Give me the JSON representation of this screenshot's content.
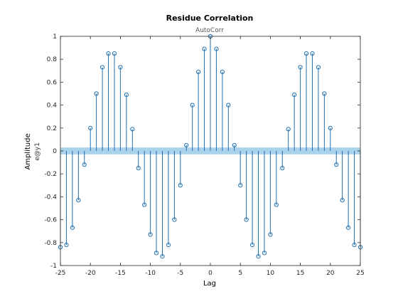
{
  "chart_data": {
    "type": "stem",
    "title": "Residue Correlation",
    "subtitle": "AutoCorr",
    "xlabel": "Lag",
    "ylabel": "Amplitude",
    "channel_label": "e@y1",
    "xlim": [
      -25,
      25
    ],
    "ylim": [
      -1,
      1
    ],
    "xticks": [
      -25,
      -20,
      -15,
      -10,
      -5,
      0,
      5,
      10,
      15,
      20,
      25
    ],
    "yticks": [
      -1,
      -0.8,
      -0.6,
      -0.4,
      -0.2,
      0,
      0.2,
      0.4,
      0.6,
      0.8,
      1
    ],
    "ytick_labels": [
      "-1",
      "-0.8",
      "-0.6",
      "-0.4",
      "-0.2",
      "0",
      "0.2",
      "0.4",
      "0.6",
      "0.8",
      "1"
    ],
    "confidence_band": [
      -0.03,
      0.03
    ],
    "grid": false,
    "colors": {
      "stem": "#1f6fae",
      "band": "#a9d3ea"
    },
    "series": [
      {
        "lags": [
          -25,
          -24,
          -23,
          -22,
          -21,
          -20,
          -19,
          -18,
          -17,
          -16,
          -15,
          -14,
          -13,
          -12,
          -11,
          -10,
          -9,
          -8,
          -7,
          -6,
          -5,
          -4,
          -3,
          -2,
          -1,
          0,
          1,
          2,
          3,
          4,
          5,
          6,
          7,
          8,
          9,
          10,
          11,
          12,
          13,
          14,
          15,
          16,
          17,
          18,
          19,
          20,
          21,
          22,
          23,
          24,
          25
        ],
        "values": [
          -0.84,
          -0.82,
          -0.67,
          -0.43,
          -0.12,
          0.2,
          0.5,
          0.73,
          0.85,
          0.85,
          0.73,
          0.49,
          0.19,
          -0.15,
          -0.47,
          -0.73,
          -0.89,
          -0.92,
          -0.82,
          -0.6,
          -0.3,
          0.05,
          0.4,
          0.69,
          0.89,
          1.0,
          0.89,
          0.69,
          0.4,
          0.05,
          -0.3,
          -0.6,
          -0.82,
          -0.92,
          -0.89,
          -0.73,
          -0.47,
          -0.15,
          0.19,
          0.49,
          0.73,
          0.85,
          0.85,
          0.73,
          0.5,
          0.2,
          -0.12,
          -0.43,
          -0.67,
          -0.82,
          -0.84
        ]
      }
    ]
  }
}
